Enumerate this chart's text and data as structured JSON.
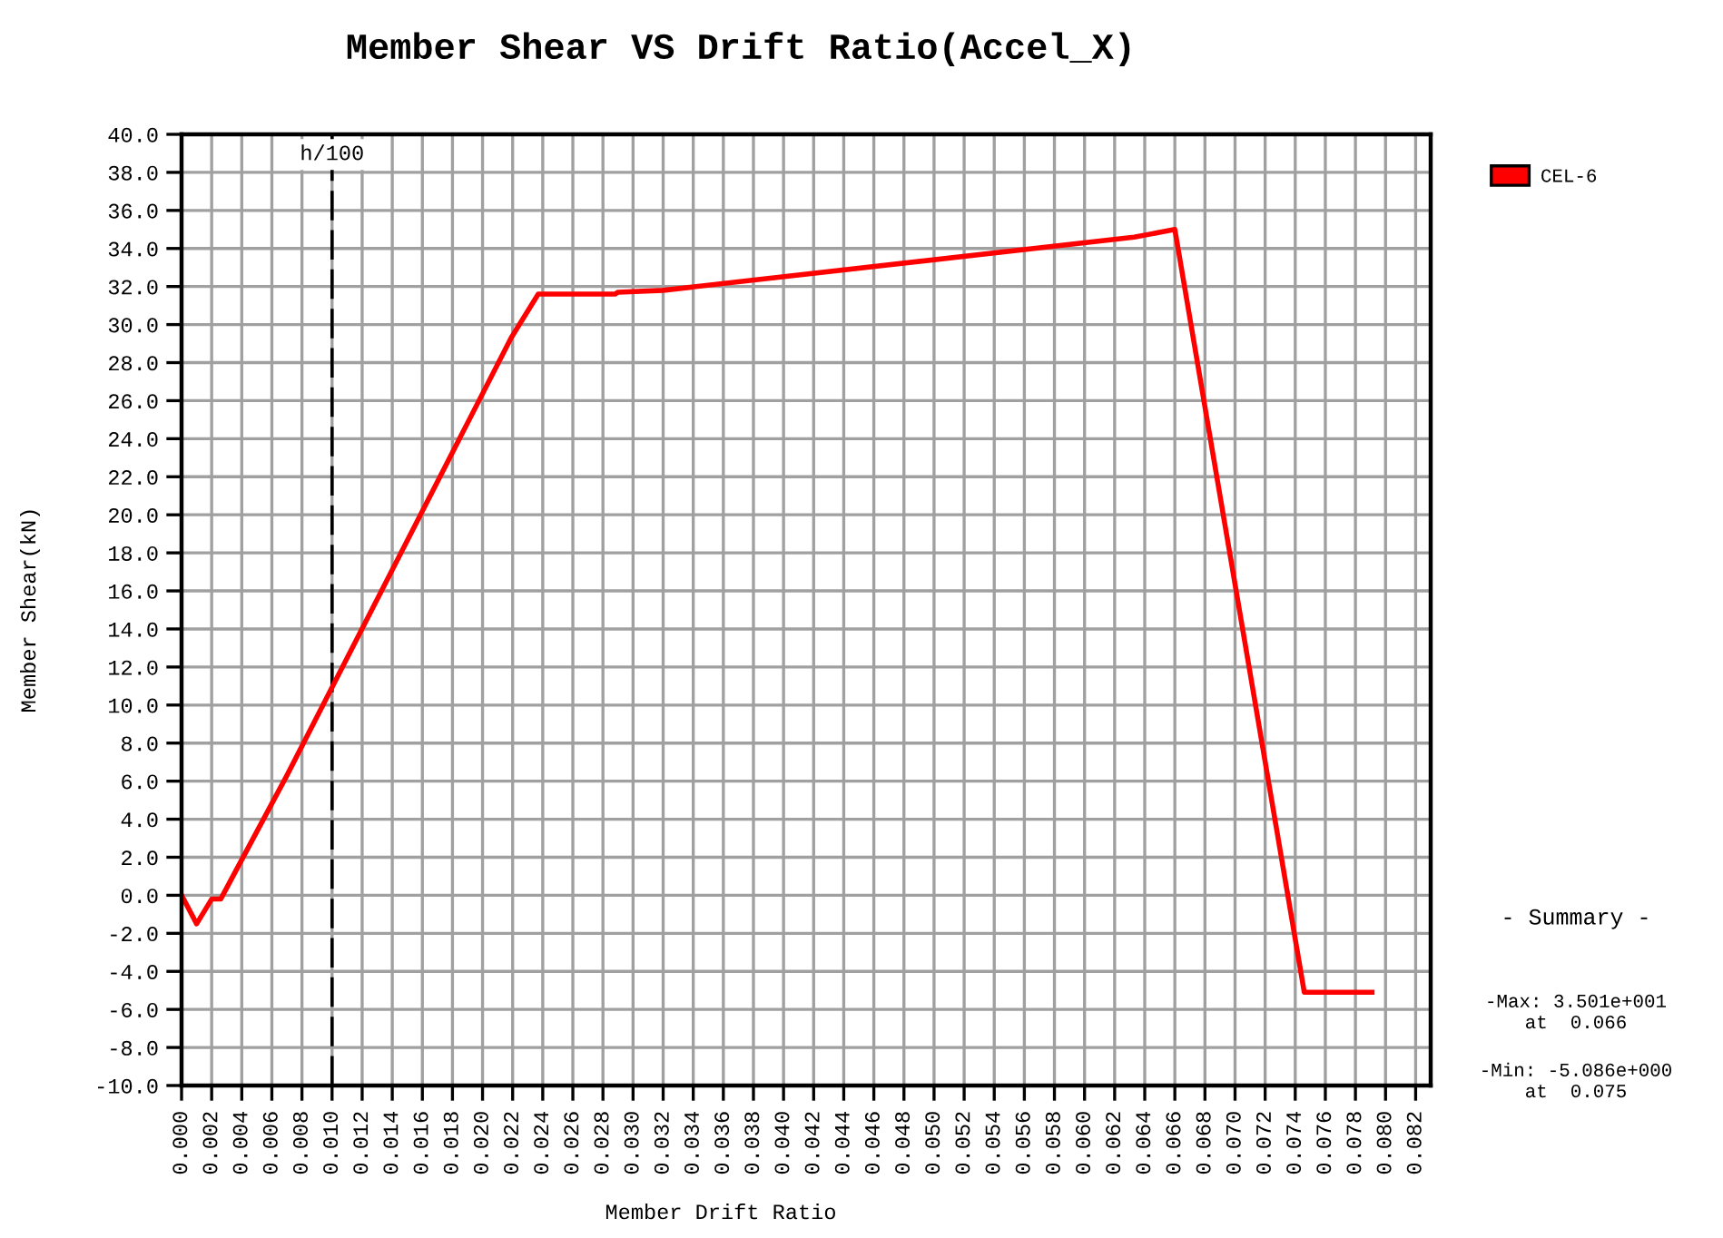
{
  "chart_data": {
    "type": "line",
    "title": "Member Shear VS Drift Ratio(Accel_X)",
    "xlabel": "Member Drift Ratio",
    "ylabel": "Member Shear(kN)",
    "xlim": [
      0,
      0.083
    ],
    "xticks": [
      {
        "value": 0,
        "label": "0.000"
      },
      {
        "value": 0.002,
        "label": "0.002"
      },
      {
        "value": 0.004,
        "label": "0.004"
      },
      {
        "value": 0.006,
        "label": "0.006"
      },
      {
        "value": 0.008,
        "label": "0.008"
      },
      {
        "value": 0.01,
        "label": "0.010"
      },
      {
        "value": 0.012,
        "label": "0.012"
      },
      {
        "value": 0.014,
        "label": "0.014"
      },
      {
        "value": 0.016,
        "label": "0.016"
      },
      {
        "value": 0.018,
        "label": "0.018"
      },
      {
        "value": 0.02,
        "label": "0.020"
      },
      {
        "value": 0.022,
        "label": "0.022"
      },
      {
        "value": 0.024,
        "label": "0.024"
      },
      {
        "value": 0.026,
        "label": "0.026"
      },
      {
        "value": 0.028,
        "label": "0.028"
      },
      {
        "value": 0.03,
        "label": "0.030"
      },
      {
        "value": 0.032,
        "label": "0.032"
      },
      {
        "value": 0.034,
        "label": "0.034"
      },
      {
        "value": 0.036,
        "label": "0.036"
      },
      {
        "value": 0.038,
        "label": "0.038"
      },
      {
        "value": 0.04,
        "label": "0.040"
      },
      {
        "value": 0.042,
        "label": "0.042"
      },
      {
        "value": 0.044,
        "label": "0.044"
      },
      {
        "value": 0.046,
        "label": "0.046"
      },
      {
        "value": 0.048,
        "label": "0.048"
      },
      {
        "value": 0.05,
        "label": "0.050"
      },
      {
        "value": 0.052,
        "label": "0.052"
      },
      {
        "value": 0.054,
        "label": "0.054"
      },
      {
        "value": 0.056,
        "label": "0.056"
      },
      {
        "value": 0.058,
        "label": "0.058"
      },
      {
        "value": 0.06,
        "label": "0.060"
      },
      {
        "value": 0.062,
        "label": "0.062"
      },
      {
        "value": 0.064,
        "label": "0.064"
      },
      {
        "value": 0.066,
        "label": "0.066"
      },
      {
        "value": 0.068,
        "label": "0.068"
      },
      {
        "value": 0.07,
        "label": "0.070"
      },
      {
        "value": 0.072,
        "label": "0.072"
      },
      {
        "value": 0.074,
        "label": "0.074"
      },
      {
        "value": 0.076,
        "label": "0.076"
      },
      {
        "value": 0.078,
        "label": "0.078"
      },
      {
        "value": 0.08,
        "label": "0.080"
      },
      {
        "value": 0.082,
        "label": "0.082"
      }
    ],
    "ylim": [
      -10,
      40
    ],
    "yticks": [
      {
        "value": -10,
        "label": "-10.0"
      },
      {
        "value": -8,
        "label": "-8.0"
      },
      {
        "value": -6,
        "label": "-6.0"
      },
      {
        "value": -4,
        "label": "-4.0"
      },
      {
        "value": -2,
        "label": "-2.0"
      },
      {
        "value": 0,
        "label": "0.0"
      },
      {
        "value": 2,
        "label": "2.0"
      },
      {
        "value": 4,
        "label": "4.0"
      },
      {
        "value": 6,
        "label": "6.0"
      },
      {
        "value": 8,
        "label": "8.0"
      },
      {
        "value": 10,
        "label": "10.0"
      },
      {
        "value": 12,
        "label": "12.0"
      },
      {
        "value": 14,
        "label": "14.0"
      },
      {
        "value": 16,
        "label": "16.0"
      },
      {
        "value": 18,
        "label": "18.0"
      },
      {
        "value": 20,
        "label": "20.0"
      },
      {
        "value": 22,
        "label": "22.0"
      },
      {
        "value": 24,
        "label": "24.0"
      },
      {
        "value": 26,
        "label": "26.0"
      },
      {
        "value": 28,
        "label": "28.0"
      },
      {
        "value": 30,
        "label": "30.0"
      },
      {
        "value": 32,
        "label": "32.0"
      },
      {
        "value": 34,
        "label": "34.0"
      },
      {
        "value": 36,
        "label": "36.0"
      },
      {
        "value": 38,
        "label": "38.0"
      },
      {
        "value": 40,
        "label": "40.0"
      }
    ],
    "series": [
      {
        "name": "CEL-6",
        "color": "#ff0000",
        "x": [
          0,
          0.001,
          0.002,
          0.0026,
          0.007,
          0.0219,
          0.0237,
          0.0288,
          0.029,
          0.032,
          0.0633,
          0.066,
          0.0746,
          0.0791
        ],
        "values": [
          0,
          -1.5,
          -0.2,
          -0.2,
          6.3,
          29.3,
          31.6,
          31.6,
          31.7,
          31.8,
          34.6,
          35.0,
          -5.1,
          -5.1
        ]
      }
    ],
    "ref_lines": [
      {
        "axis": "x",
        "value": 0.01,
        "label": "h/100",
        "color": "#000000",
        "line_style": "dashed"
      }
    ],
    "grid": true,
    "legend": "top right",
    "annotations": [
      "- Summary -",
      "-Max: 3.501e+001\nat  0.066",
      "-Min: -5.086e+000\nat  0.075"
    ]
  }
}
